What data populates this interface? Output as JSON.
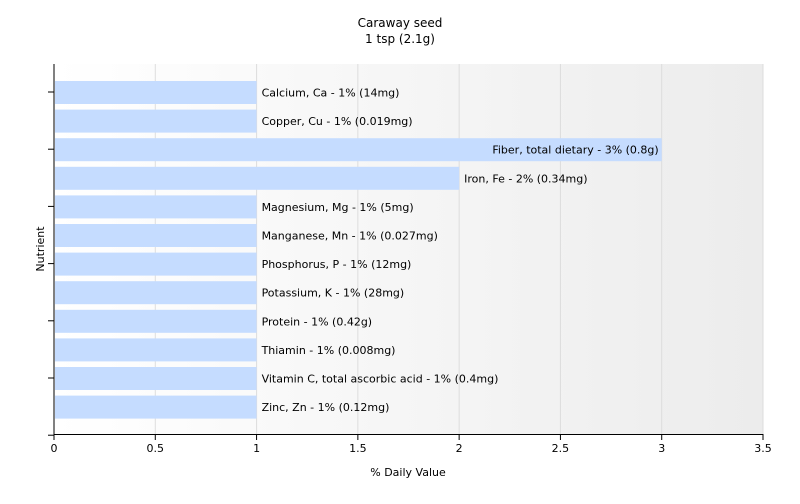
{
  "chart_data": {
    "type": "bar",
    "orientation": "horizontal",
    "title": "Caraway seed",
    "subtitle": "1 tsp (2.1g)",
    "xlabel": "% Daily Value",
    "ylabel": "Nutrient",
    "xlim": [
      0,
      3.5
    ],
    "xticks": [
      0,
      0.5,
      1,
      1.5,
      2,
      2.5,
      3,
      3.5
    ],
    "xtick_labels": [
      "0",
      "0.5",
      "1",
      "1.5",
      "2",
      "2.5",
      "3",
      "3.5"
    ],
    "grid": true,
    "bar_color": "#c5dcff",
    "categories": [
      "Calcium, Ca",
      "Copper, Cu",
      "Fiber, total dietary",
      "Iron, Fe",
      "Magnesium, Mg",
      "Manganese, Mn",
      "Phosphorus, P",
      "Potassium, K",
      "Protein",
      "Thiamin",
      "Vitamin C, total ascorbic acid",
      "Zinc, Zn"
    ],
    "values": [
      1,
      1,
      3,
      2,
      1,
      1,
      1,
      1,
      1,
      1,
      1,
      1
    ],
    "bar_labels": [
      "Calcium, Ca - 1% (14mg)",
      "Copper, Cu - 1% (0.019mg)",
      "Fiber, total dietary - 3% (0.8g)",
      "Iron, Fe - 2% (0.34mg)",
      "Magnesium, Mg - 1% (5mg)",
      "Manganese, Mn - 1% (0.027mg)",
      "Phosphorus, P - 1% (12mg)",
      "Potassium, K - 1% (28mg)",
      "Protein - 1% (0.42g)",
      "Thiamin - 1% (0.008mg)",
      "Vitamin C, total ascorbic acid - 1% (0.4mg)",
      "Zinc, Zn - 1% (0.12mg)"
    ]
  }
}
